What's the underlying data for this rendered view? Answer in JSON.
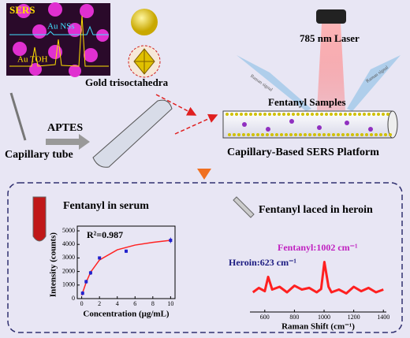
{
  "top": {
    "sers": "SERS",
    "au_nss": "Au NSs",
    "au_toh": "Au TOH",
    "gold": "Gold trisoctahedra",
    "laser": "785 nm Laser",
    "raman_left": "Raman signal",
    "raman_right": "Raman signal",
    "samples": "Fentanyl Samples",
    "aptes": "APTES",
    "capillary": "Capillary tube",
    "platform": "Capillary-Based SERS Platform"
  },
  "bottom": {
    "serum": "Fentanyl in serum",
    "heroin": "Fentanyl laced in heroin",
    "r2": "R²=0.987",
    "heroin_peak": "Heroin:623 cm⁻¹",
    "fentanyl_peak": "Fentanyl:1002 cm⁻¹"
  },
  "chart_data": [
    {
      "type": "scatter",
      "xlabel": "Concentration (μg/mL)",
      "ylabel": "Intensity (counts)",
      "xlim": [
        -0.5,
        10.5
      ],
      "ylim": [
        0,
        5000
      ],
      "xticks": [
        0,
        2,
        4,
        6,
        8,
        10
      ],
      "yticks": [
        0,
        1000,
        2000,
        3000,
        4000,
        5000
      ],
      "series": [
        {
          "color": "#2222cc",
          "x": [
            0.1,
            0.5,
            1,
            2,
            5,
            10
          ],
          "values": [
            400,
            1250,
            1900,
            3000,
            3500,
            4300
          ],
          "errors": [
            150,
            150,
            150,
            100,
            120,
            200
          ]
        },
        {
          "color": "#ff2222",
          "x": [
            0,
            0.5,
            1,
            2,
            4,
            6,
            8,
            10
          ],
          "values": [
            250,
            1200,
            1950,
            2850,
            3600,
            3950,
            4150,
            4300
          ]
        }
      ]
    },
    {
      "type": "line",
      "xlabel": "Raman Shift (cm⁻¹)",
      "xlim": [
        500,
        1420
      ],
      "ylim": [
        0,
        100
      ],
      "xticks": [
        600,
        800,
        1000,
        1200,
        1400
      ],
      "color": "#ff2020",
      "x": [
        520,
        560,
        600,
        623,
        650,
        700,
        750,
        800,
        850,
        900,
        950,
        980,
        1002,
        1030,
        1050,
        1100,
        1150,
        1200,
        1250,
        1300,
        1350,
        1400
      ],
      "values": [
        30,
        38,
        32,
        58,
        35,
        40,
        30,
        42,
        35,
        38,
        30,
        36,
        85,
        40,
        30,
        35,
        28,
        40,
        32,
        38,
        30,
        35
      ]
    }
  ]
}
